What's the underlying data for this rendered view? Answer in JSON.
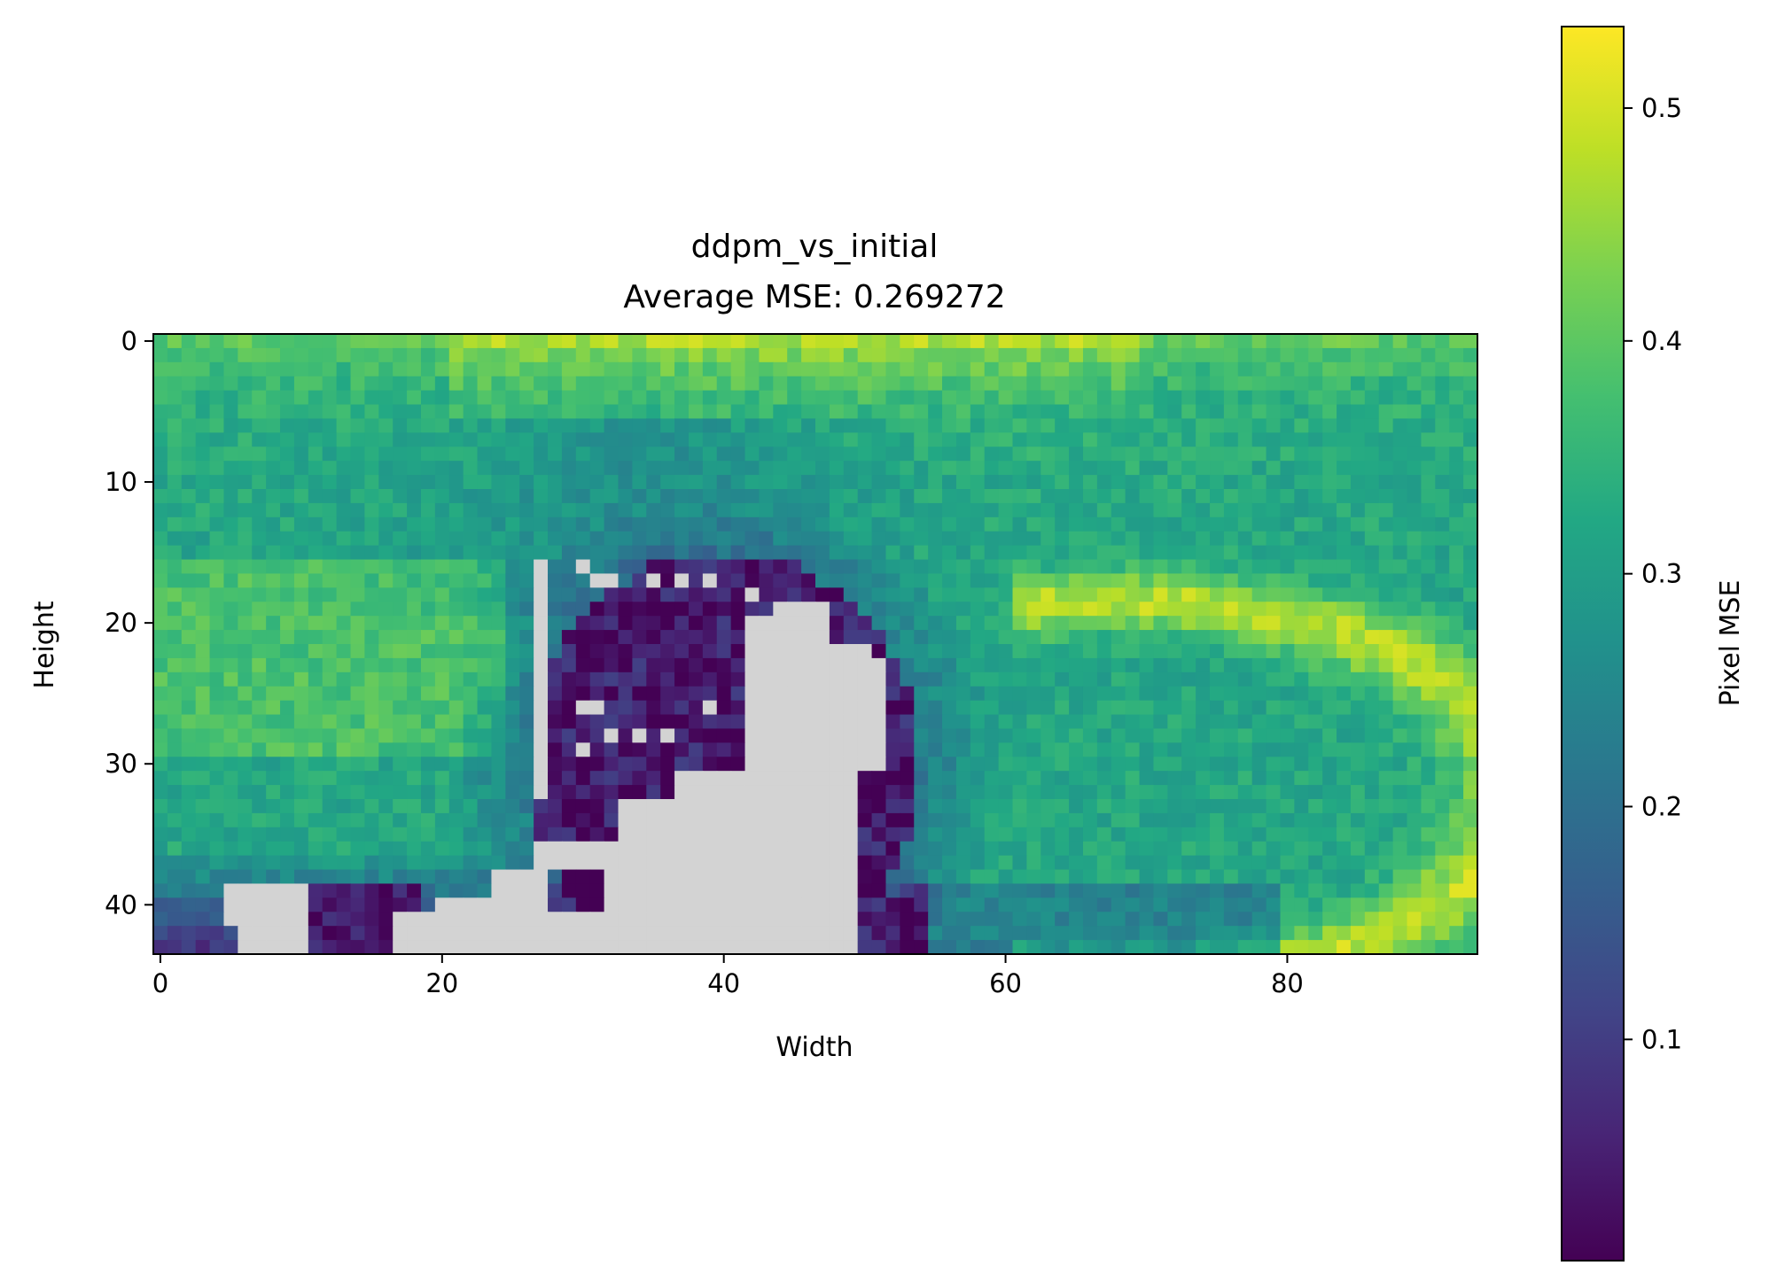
{
  "chart_data": {
    "type": "heatmap",
    "title": "ddpm_vs_initial",
    "subtitle": "Average MSE: 0.269272",
    "xlabel": "Width",
    "ylabel": "Height",
    "grid": false,
    "image_shape": {
      "rows": 44,
      "cols": 94
    },
    "xlim": [
      -0.5,
      93.5
    ],
    "ylim": [
      43.5,
      -0.5
    ],
    "xticks": [
      0,
      20,
      40,
      60,
      80
    ],
    "yticks": [
      0,
      10,
      20,
      30,
      40
    ],
    "masked_color": "#d3d3d3",
    "colormap": "viridis",
    "colorbar": {
      "label": "Pixel MSE",
      "vmin": 0.005,
      "vmax": 0.535,
      "ticks": [
        0.1,
        0.2,
        0.3,
        0.4,
        0.5
      ],
      "tick_labels": [
        "0.1",
        "0.2",
        "0.3",
        "0.4",
        "0.5"
      ]
    },
    "masked_regions": [
      "rows 19-43 around cols 38-51 (large blob)",
      "rows 39-43 cols 5-10",
      "rows 35-43 cols 17-37",
      "col 27 rows 16-32 (vertical line)"
    ],
    "value_pattern": {
      "top_band_rows_0_3": 0.47,
      "upper_right_arc_peak": 0.5,
      "low_region_inside_mask_boundary": 0.02,
      "bottom_left_rows_38_43": 0.08,
      "typical_background": 0.32
    }
  }
}
